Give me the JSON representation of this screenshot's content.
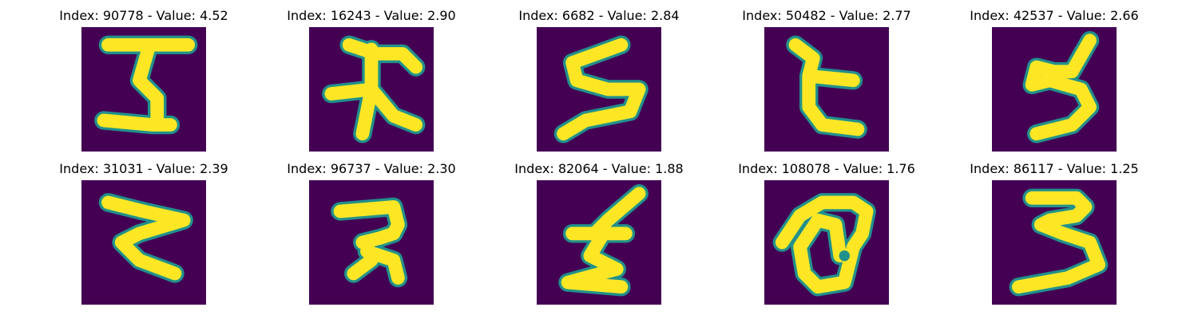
{
  "colors": {
    "background": "#440154",
    "ink": "#fde725",
    "edge": "#21918c"
  },
  "grid": {
    "rows": 2,
    "cols": 5,
    "items": [
      {
        "title": "Index: 90778 - Value: 4.52",
        "glyph": "tall-5-like"
      },
      {
        "title": "Index: 16243 - Value: 2.90",
        "glyph": "cross-like"
      },
      {
        "title": "Index: 6682 - Value: 2.84",
        "glyph": "s-like"
      },
      {
        "title": "Index: 50482 - Value: 2.77",
        "glyph": "open-c-like"
      },
      {
        "title": "Index: 42537 - Value: 2.66",
        "glyph": "slanted-loop"
      },
      {
        "title": "Index: 31031 - Value: 2.39",
        "glyph": "z-curve"
      },
      {
        "title": "Index: 96737 - Value: 2.30",
        "glyph": "hook-like"
      },
      {
        "title": "Index: 82064 - Value: 1.88",
        "glyph": "stacked-zig"
      },
      {
        "title": "Index: 108078 - Value: 1.76",
        "glyph": "loop-with-hole"
      },
      {
        "title": "Index: 86117 - Value: 1.25",
        "glyph": "three-like"
      }
    ]
  }
}
